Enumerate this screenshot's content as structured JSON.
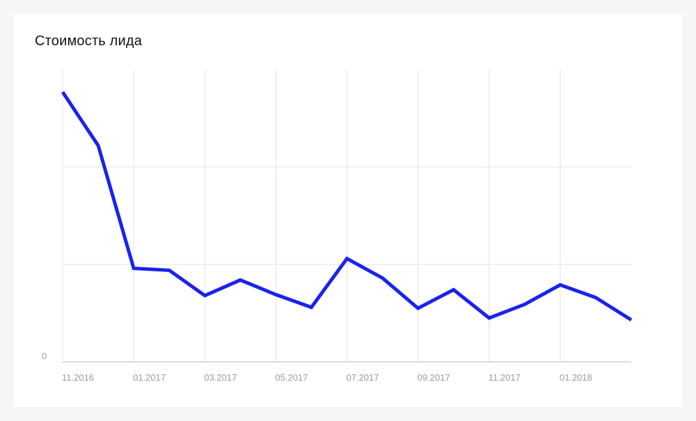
{
  "chart_data": {
    "type": "line",
    "title": "Стоимость лида",
    "x": [
      "11.2016",
      "12.2016",
      "01.2017",
      "02.2017",
      "03.2017",
      "04.2017",
      "05.2017",
      "06.2017",
      "07.2017",
      "08.2017",
      "09.2017",
      "10.2017",
      "11.2017",
      "12.2017",
      "01.2018",
      "02.2018",
      "03.2018"
    ],
    "x_tick_labels": [
      "11.2016",
      "01.2017",
      "03.2017",
      "05.2017",
      "07.2017",
      "09.2017",
      "11.2017",
      "01.2018"
    ],
    "series": [
      {
        "values": [
          2.77,
          2.22,
          0.96,
          0.94,
          0.68,
          0.84,
          0.69,
          0.56,
          1.06,
          0.86,
          0.55,
          0.74,
          0.45,
          0.59,
          0.79,
          0.66,
          0.43
        ]
      }
    ],
    "y_tick_labels": [
      "0"
    ],
    "ylim": [
      0,
      3.0
    ],
    "grid": true,
    "colors": {
      "line": "#1a22ee",
      "grid": "#e3e3e3",
      "axis": "#cfcfcf"
    }
  }
}
